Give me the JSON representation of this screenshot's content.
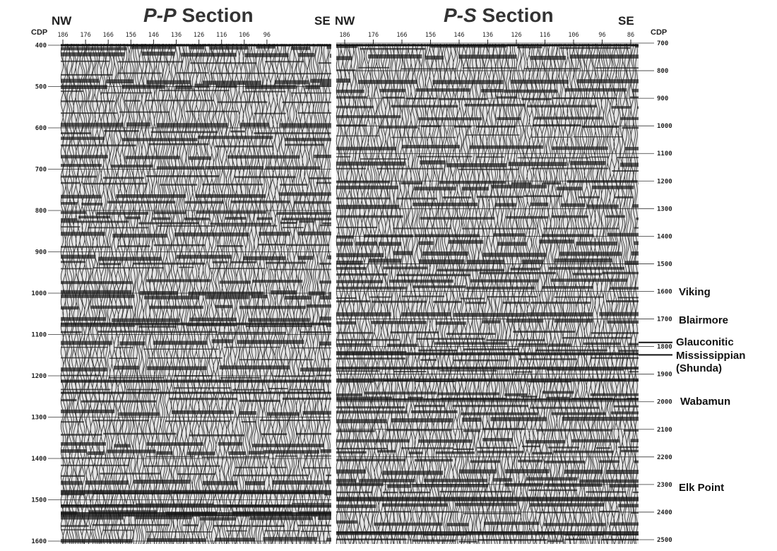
{
  "left": {
    "title_prefix": "P-P",
    "title_suffix": "Section",
    "dir_left": "NW",
    "dir_right": "SE",
    "axis_label": "CDP",
    "cdp_ticks": [
      "186",
      "176",
      "166",
      "156",
      "146",
      "136",
      "126",
      "116",
      "106",
      "96"
    ],
    "time_ticks": [
      "400",
      "500",
      "600",
      "700",
      "800",
      "900",
      "1000",
      "1100",
      "1200",
      "1300",
      "1400",
      "1500",
      "1600"
    ]
  },
  "right": {
    "title_prefix": "P-S",
    "title_suffix": "Section",
    "dir_left": "NW",
    "dir_right": "SE",
    "axis_label": "CDP",
    "cdp_ticks": [
      "186",
      "176",
      "166",
      "156",
      "146",
      "136",
      "126",
      "116",
      "106",
      "96",
      "86"
    ],
    "time_ticks": [
      "700",
      "800",
      "900",
      "1000",
      "1100",
      "1200",
      "1300",
      "1400",
      "1500",
      "1600",
      "1700",
      "1800",
      "1900",
      "2000",
      "2100",
      "2200",
      "2300",
      "2400",
      "2500"
    ]
  },
  "horizons": [
    {
      "label": "Viking",
      "time": 1600
    },
    {
      "label": "Blairmore",
      "time": 1700
    },
    {
      "label": "Glauconitic",
      "time": 1785
    },
    {
      "label": "Mississippian",
      "time": 1830
    },
    {
      "label": "(Shunda)",
      "time": 1870
    },
    {
      "label": "Wabamun",
      "time": 2000
    },
    {
      "label": "Elk Point",
      "time": 2300
    }
  ]
}
